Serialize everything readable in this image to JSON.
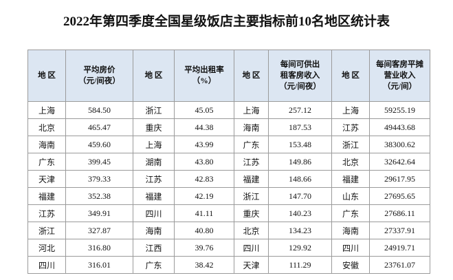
{
  "title": "2022年第四季度全国星级饭店主要指标前10名地区统计表",
  "table": {
    "header": [
      "地  区",
      "平均房价\n（元/间夜）",
      "地  区",
      "平均出租率\n（%）",
      "地  区",
      "每间可供出\n租客房收入\n（元/间夜）",
      "地  区",
      "每间客房平摊\n营业收入\n（元/间）"
    ],
    "rows": [
      [
        "上海",
        "584.50",
        "浙江",
        "45.05",
        "上海",
        "257.12",
        "上海",
        "59255.19"
      ],
      [
        "北京",
        "465.47",
        "重庆",
        "44.38",
        "海南",
        "187.53",
        "江苏",
        "49443.68"
      ],
      [
        "海南",
        "459.60",
        "上海",
        "43.99",
        "广东",
        "153.48",
        "浙江",
        "38300.62"
      ],
      [
        "广东",
        "399.45",
        "湖南",
        "43.80",
        "江苏",
        "149.86",
        "北京",
        "32642.64"
      ],
      [
        "天津",
        "379.33",
        "江苏",
        "42.83",
        "福建",
        "148.66",
        "福建",
        "29617.95"
      ],
      [
        "福建",
        "352.38",
        "福建",
        "42.19",
        "浙江",
        "147.70",
        "山东",
        "27695.65"
      ],
      [
        "江苏",
        "349.91",
        "四川",
        "41.11",
        "重庆",
        "140.23",
        "广东",
        "27686.11"
      ],
      [
        "浙江",
        "327.87",
        "海南",
        "40.80",
        "北京",
        "134.23",
        "海南",
        "27337.91"
      ],
      [
        "河北",
        "316.80",
        "江西",
        "39.76",
        "四川",
        "129.92",
        "四川",
        "24919.71"
      ],
      [
        "四川",
        "316.01",
        "广东",
        "38.42",
        "天津",
        "111.29",
        "安徽",
        "23761.07"
      ]
    ]
  }
}
